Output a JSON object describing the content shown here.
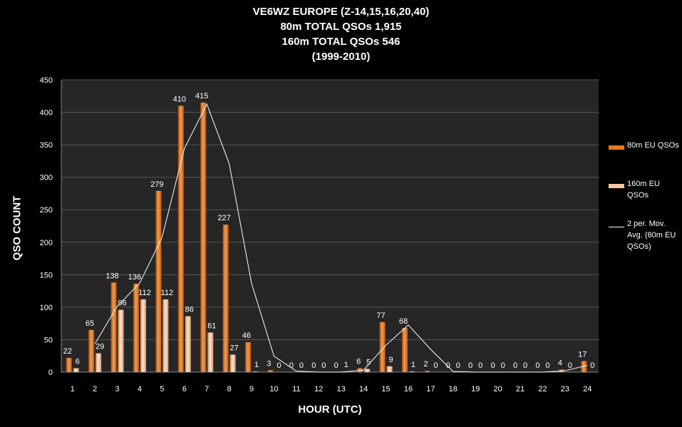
{
  "title_lines": [
    "VE6WZ EUROPE (Z-14,15,16,20,40)",
    "80m TOTAL QSOs 1,915",
    "160m TOTAL QSOs 546",
    "(1999-2010)"
  ],
  "colors": {
    "background": "#000000",
    "plot_area": "#262626",
    "bar_80m": "#e8761c",
    "bar_160m": "#f5c6a0",
    "moving_avg_line": "#ffffff",
    "grid": "#555555"
  },
  "chart_data": {
    "type": "bar",
    "title": "VE6WZ EUROPE (Z-14,15,16,20,40) 80m TOTAL QSOs 1,915 160m TOTAL QSOs 546 (1999-2010)",
    "xlabel": "HOUR (UTC)",
    "ylabel": "QSO COUNT",
    "ylim": [
      0,
      450
    ],
    "yticks": [
      0,
      50,
      100,
      150,
      200,
      250,
      300,
      350,
      400,
      450
    ],
    "grid": "horizontal",
    "legend_position": "right",
    "categories": [
      "1",
      "2",
      "3",
      "4",
      "5",
      "6",
      "7",
      "8",
      "9",
      "10",
      "11",
      "12",
      "13",
      "14",
      "15",
      "16",
      "17",
      "18",
      "19",
      "20",
      "21",
      "22",
      "23",
      "24"
    ],
    "series": [
      {
        "name": "80m EU QSOs",
        "kind": "bar",
        "values": [
          22,
          65,
          138,
          136,
          279,
          410,
          415,
          227,
          46,
          3,
          0,
          0,
          0,
          6,
          77,
          68,
          2,
          0,
          0,
          0,
          0,
          0,
          4,
          17
        ],
        "labels": [
          "22",
          "65",
          "138",
          "136",
          "279",
          "410",
          "415",
          "227",
          "46",
          "3",
          "0",
          "0",
          "0",
          "6",
          "77",
          "68",
          "2",
          "0",
          "0",
          "0",
          "0",
          "0",
          "4",
          "17"
        ]
      },
      {
        "name": "160m EU QSOs",
        "kind": "bar",
        "values": [
          6,
          29,
          96,
          112,
          112,
          86,
          61,
          27,
          1,
          0,
          0,
          0,
          1,
          5,
          9,
          1,
          0,
          0,
          0,
          0,
          0,
          0,
          0,
          0
        ],
        "labels": [
          "6",
          "29",
          "96",
          "112",
          "112",
          "86",
          "61",
          "27",
          "1",
          "0",
          "0",
          "0",
          "1",
          "5",
          "9",
          "1",
          "0",
          "0",
          "0",
          "0",
          "0",
          "0",
          "0",
          "0"
        ]
      },
      {
        "name": "2 per. Mov. Avg. (80m EU QSOs)",
        "kind": "line",
        "values": [
          null,
          43.5,
          101.5,
          137,
          207.5,
          344.5,
          412.5,
          321,
          136.5,
          24.5,
          1.5,
          0,
          0,
          3,
          41.5,
          72.5,
          35,
          1,
          0,
          0,
          0,
          0,
          2,
          10.5
        ]
      }
    ]
  }
}
